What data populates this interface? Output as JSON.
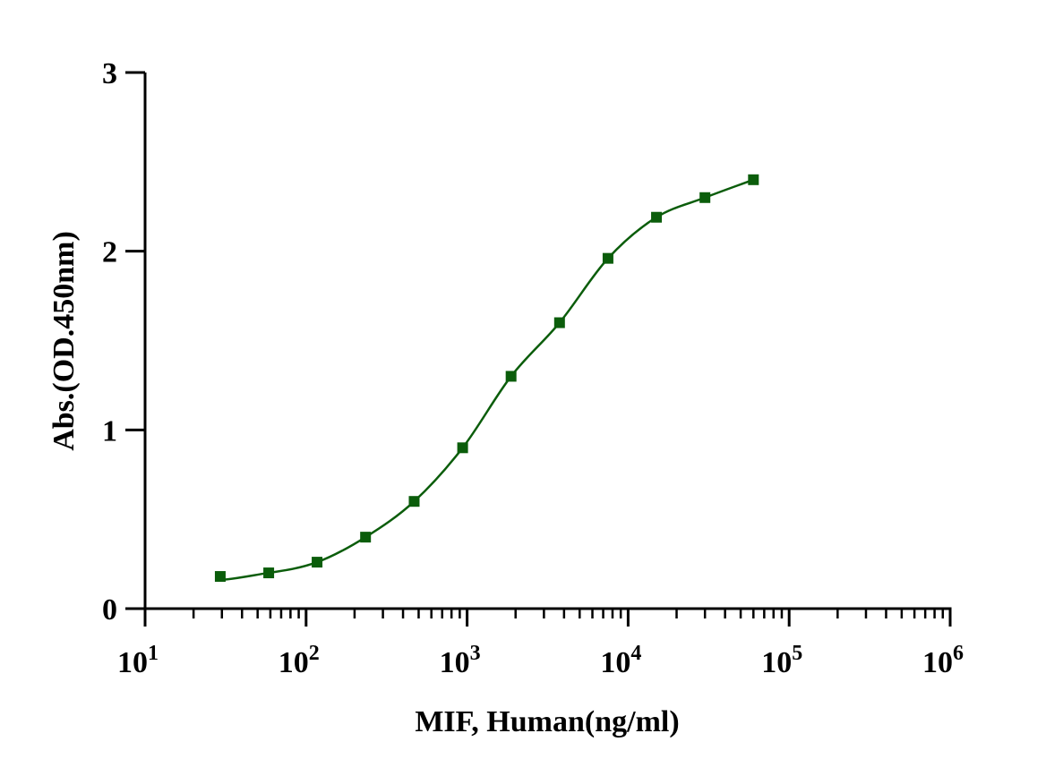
{
  "chart_data": {
    "type": "scatter",
    "xlabel": "MIF, Human(ng/ml)",
    "ylabel": "Abs.(OD.450nm)",
    "x_scale": "log10",
    "xlim": [
      10,
      1000000
    ],
    "ylim": [
      0,
      3
    ],
    "x_ticks": [
      {
        "base": "10",
        "exp": "1"
      },
      {
        "base": "10",
        "exp": "2"
      },
      {
        "base": "10",
        "exp": "3"
      },
      {
        "base": "10",
        "exp": "4"
      },
      {
        "base": "10",
        "exp": "5"
      },
      {
        "base": "10",
        "exp": "6"
      }
    ],
    "y_ticks": [
      "0",
      "1",
      "2",
      "3"
    ],
    "grid": false,
    "legend": "none",
    "series": [
      {
        "marker": "square",
        "color": "#0b5d0b",
        "fit": "sigmoidal 4PL",
        "points": [
          {
            "x": 29.3,
            "y": 0.18
          },
          {
            "x": 58.6,
            "y": 0.2
          },
          {
            "x": 117,
            "y": 0.26
          },
          {
            "x": 234,
            "y": 0.4
          },
          {
            "x": 469,
            "y": 0.6
          },
          {
            "x": 938,
            "y": 0.9
          },
          {
            "x": 1875,
            "y": 1.3
          },
          {
            "x": 3750,
            "y": 1.6
          },
          {
            "x": 7500,
            "y": 1.96
          },
          {
            "x": 15000,
            "y": 2.19
          },
          {
            "x": 30000,
            "y": 2.3
          },
          {
            "x": 60000,
            "y": 2.4
          }
        ]
      }
    ]
  }
}
